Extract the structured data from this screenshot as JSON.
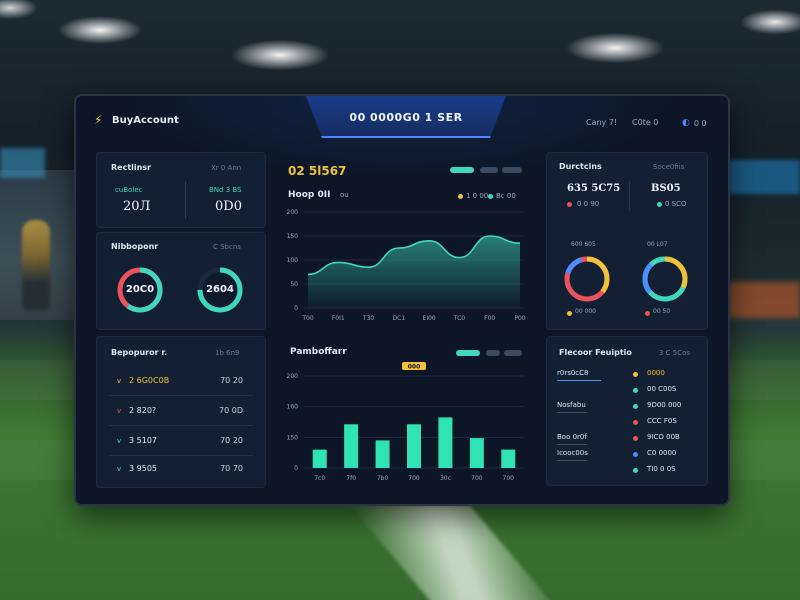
{
  "header": {
    "brand": "BuyAccount",
    "title": "00 0000G0 1 SER",
    "links": [
      "Cany 7!",
      "C0te 0",
      "0 0"
    ]
  },
  "colors": {
    "accent": "#3fd7bd",
    "gold": "#f0c23a",
    "red": "#e8535c",
    "blue": "#4f8cff",
    "panel": "#131f33"
  },
  "left_top": {
    "title": "Rectlinsr",
    "subtitle": "Xr 0 Ann",
    "stats": [
      {
        "label": "cuBolec",
        "value": "20Л"
      },
      {
        "label": "BNd 3 BS",
        "value": "0D0"
      }
    ]
  },
  "left_mid": {
    "title": "Nibboponr",
    "subtitle": "C Sbcns",
    "donuts": [
      {
        "value": "20C0",
        "fill": 0.6,
        "colors": [
          "#3fd7bd",
          "#e8535c"
        ]
      },
      {
        "value": "2604",
        "fill": 0.75,
        "colors": [
          "#3fd7bd",
          "#0f1a2c"
        ]
      }
    ]
  },
  "left_bottom": {
    "title": "Bepopuror r.",
    "subtitle": "1b 6n9",
    "rows": [
      {
        "bullet": "v",
        "name": "2 6G0C0B",
        "value": "70 20",
        "bullet_color": "#f0c23a",
        "name_color": "#f0c23a"
      },
      {
        "bullet": "v",
        "name": "2 820?",
        "value": "70 0D",
        "bullet_color": "#e8535c",
        "name_color": "#e6ecf5"
      },
      {
        "bullet": "v",
        "name": "3 5107",
        "value": "70 20",
        "bullet_color": "#3fd7bd",
        "name_color": "#e6ecf5"
      },
      {
        "bullet": "v",
        "name": "3 9505",
        "value": "70 70",
        "bullet_color": "#3fd7bd",
        "name_color": "#e6ecf5"
      }
    ]
  },
  "center_top": {
    "big_value": "02 5l567",
    "label": "Hoop 0II",
    "sub": "ou",
    "legend": [
      "1 0 00",
      "Bc 00"
    ],
    "y_ticks": [
      "200",
      "150",
      "100",
      "50",
      "0"
    ],
    "x_ticks": [
      "T00",
      "F0I1",
      "T30",
      "DC1",
      "EI00",
      "TC0",
      "F00",
      "P00"
    ]
  },
  "center_bottom": {
    "title": "Pamboffarr",
    "tag": "000",
    "y_ticks": [
      "200",
      "160",
      "150",
      "0"
    ],
    "x_ticks": [
      "7c0",
      "7f0",
      "7b0",
      "700",
      "30c",
      "700",
      "700"
    ]
  },
  "chart_data": [
    {
      "type": "area",
      "title": "Hoop 0II",
      "x": [
        "T00",
        "F0I1",
        "T30",
        "DC1",
        "EI00",
        "TC0",
        "F00",
        "P00"
      ],
      "series": [
        {
          "values": [
            70,
            95,
            85,
            125,
            140,
            105,
            150,
            135
          ]
        }
      ],
      "ylim": [
        0,
        200
      ]
    },
    {
      "type": "bar",
      "title": "Pamboffarr",
      "categories": [
        "7c0",
        "7f0",
        "7b0",
        "700",
        "30c",
        "700",
        "700"
      ],
      "values": [
        40,
        95,
        60,
        95,
        110,
        65,
        40
      ],
      "ylim": [
        0,
        200
      ]
    }
  ],
  "right_top": {
    "title": "Durctcins",
    "subtitle": "Soce0fiis",
    "stats": [
      {
        "value": "635 5C75",
        "sub": "0 0 90",
        "dot": "#e8535c"
      },
      {
        "value": "BS05",
        "sub": "0 SCO",
        "dot": "#3fd7bd"
      }
    ],
    "donut_labels": [
      "600 605",
      "00 L07"
    ],
    "donut_captions": [
      "00 000",
      "00 50"
    ]
  },
  "right_bottom": {
    "title": "Flecoor Feuiptio",
    "subtitle": "3 C 5Cos",
    "rows": [
      {
        "label": "r0rs0cC8",
        "value": "0000",
        "dot": "#f0c23a"
      },
      {
        "label": "",
        "value": "00 C00S",
        "dot": "#3fd7bd"
      },
      {
        "label": "Nosfabu",
        "value": "9D00 000",
        "dot": "#3fd7bd"
      },
      {
        "label": "",
        "value": "CCC F0S",
        "dot": "#e8535c"
      },
      {
        "label": "Boo 0r0f",
        "value": "9ICO 00B",
        "dot": "#e8535c"
      },
      {
        "label": "Icooc00s",
        "value": "C0 0000",
        "dot": "#4f8cff"
      },
      {
        "label": "",
        "value": "TI0 0 0S",
        "dot": "#3fd7bd"
      }
    ]
  }
}
